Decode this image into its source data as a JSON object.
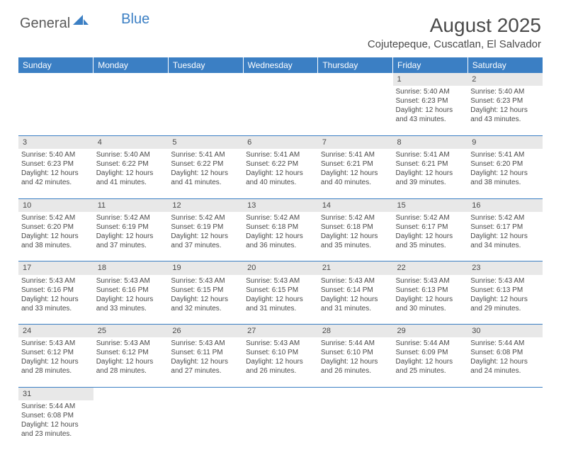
{
  "logo": {
    "general": "General",
    "blue": "Blue"
  },
  "title": "August 2025",
  "location": "Cojutepeque, Cuscatlan, El Salvador",
  "colors": {
    "header_bg": "#3b7fc4",
    "header_text": "#ffffff",
    "daynum_bg": "#e8e8e8",
    "text": "#4a4a4a",
    "divider": "#3b7fc4"
  },
  "weekdays": [
    "Sunday",
    "Monday",
    "Tuesday",
    "Wednesday",
    "Thursday",
    "Friday",
    "Saturday"
  ],
  "weeks": [
    [
      null,
      null,
      null,
      null,
      null,
      {
        "n": "1",
        "sr": "5:40 AM",
        "ss": "6:23 PM",
        "dl": "12 hours and 43 minutes."
      },
      {
        "n": "2",
        "sr": "5:40 AM",
        "ss": "6:23 PM",
        "dl": "12 hours and 43 minutes."
      }
    ],
    [
      {
        "n": "3",
        "sr": "5:40 AM",
        "ss": "6:23 PM",
        "dl": "12 hours and 42 minutes."
      },
      {
        "n": "4",
        "sr": "5:40 AM",
        "ss": "6:22 PM",
        "dl": "12 hours and 41 minutes."
      },
      {
        "n": "5",
        "sr": "5:41 AM",
        "ss": "6:22 PM",
        "dl": "12 hours and 41 minutes."
      },
      {
        "n": "6",
        "sr": "5:41 AM",
        "ss": "6:22 PM",
        "dl": "12 hours and 40 minutes."
      },
      {
        "n": "7",
        "sr": "5:41 AM",
        "ss": "6:21 PM",
        "dl": "12 hours and 40 minutes."
      },
      {
        "n": "8",
        "sr": "5:41 AM",
        "ss": "6:21 PM",
        "dl": "12 hours and 39 minutes."
      },
      {
        "n": "9",
        "sr": "5:41 AM",
        "ss": "6:20 PM",
        "dl": "12 hours and 38 minutes."
      }
    ],
    [
      {
        "n": "10",
        "sr": "5:42 AM",
        "ss": "6:20 PM",
        "dl": "12 hours and 38 minutes."
      },
      {
        "n": "11",
        "sr": "5:42 AM",
        "ss": "6:19 PM",
        "dl": "12 hours and 37 minutes."
      },
      {
        "n": "12",
        "sr": "5:42 AM",
        "ss": "6:19 PM",
        "dl": "12 hours and 37 minutes."
      },
      {
        "n": "13",
        "sr": "5:42 AM",
        "ss": "6:18 PM",
        "dl": "12 hours and 36 minutes."
      },
      {
        "n": "14",
        "sr": "5:42 AM",
        "ss": "6:18 PM",
        "dl": "12 hours and 35 minutes."
      },
      {
        "n": "15",
        "sr": "5:42 AM",
        "ss": "6:17 PM",
        "dl": "12 hours and 35 minutes."
      },
      {
        "n": "16",
        "sr": "5:42 AM",
        "ss": "6:17 PM",
        "dl": "12 hours and 34 minutes."
      }
    ],
    [
      {
        "n": "17",
        "sr": "5:43 AM",
        "ss": "6:16 PM",
        "dl": "12 hours and 33 minutes."
      },
      {
        "n": "18",
        "sr": "5:43 AM",
        "ss": "6:16 PM",
        "dl": "12 hours and 33 minutes."
      },
      {
        "n": "19",
        "sr": "5:43 AM",
        "ss": "6:15 PM",
        "dl": "12 hours and 32 minutes."
      },
      {
        "n": "20",
        "sr": "5:43 AM",
        "ss": "6:15 PM",
        "dl": "12 hours and 31 minutes."
      },
      {
        "n": "21",
        "sr": "5:43 AM",
        "ss": "6:14 PM",
        "dl": "12 hours and 31 minutes."
      },
      {
        "n": "22",
        "sr": "5:43 AM",
        "ss": "6:13 PM",
        "dl": "12 hours and 30 minutes."
      },
      {
        "n": "23",
        "sr": "5:43 AM",
        "ss": "6:13 PM",
        "dl": "12 hours and 29 minutes."
      }
    ],
    [
      {
        "n": "24",
        "sr": "5:43 AM",
        "ss": "6:12 PM",
        "dl": "12 hours and 28 minutes."
      },
      {
        "n": "25",
        "sr": "5:43 AM",
        "ss": "6:12 PM",
        "dl": "12 hours and 28 minutes."
      },
      {
        "n": "26",
        "sr": "5:43 AM",
        "ss": "6:11 PM",
        "dl": "12 hours and 27 minutes."
      },
      {
        "n": "27",
        "sr": "5:43 AM",
        "ss": "6:10 PM",
        "dl": "12 hours and 26 minutes."
      },
      {
        "n": "28",
        "sr": "5:44 AM",
        "ss": "6:10 PM",
        "dl": "12 hours and 26 minutes."
      },
      {
        "n": "29",
        "sr": "5:44 AM",
        "ss": "6:09 PM",
        "dl": "12 hours and 25 minutes."
      },
      {
        "n": "30",
        "sr": "5:44 AM",
        "ss": "6:08 PM",
        "dl": "12 hours and 24 minutes."
      }
    ],
    [
      {
        "n": "31",
        "sr": "5:44 AM",
        "ss": "6:08 PM",
        "dl": "12 hours and 23 minutes."
      },
      null,
      null,
      null,
      null,
      null,
      null
    ]
  ],
  "labels": {
    "sunrise": "Sunrise:",
    "sunset": "Sunset:",
    "daylight": "Daylight:"
  }
}
